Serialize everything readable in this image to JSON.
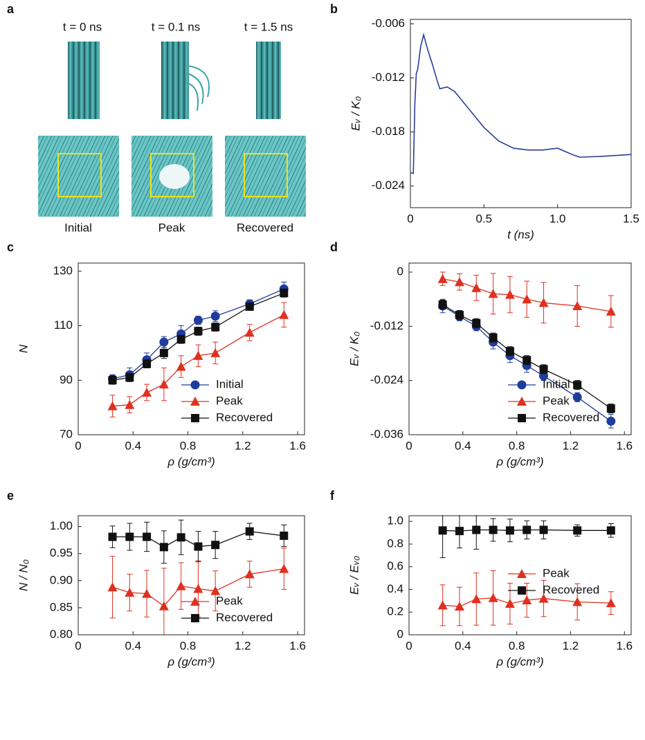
{
  "panel_a": {
    "panel_label": "a",
    "times": [
      "t = 0 ns",
      "t = 0.1 ns",
      "t = 1.5 ns"
    ],
    "states": [
      "Initial",
      "Peak",
      "Recovered"
    ]
  },
  "chart_data": [
    {
      "type": "line",
      "panel_label": "b",
      "x_label": "t  (ns)",
      "y_label": "Eᵥ / K₀",
      "x": [
        0,
        0.02,
        0.03,
        0.04,
        0.05,
        0.07,
        0.09,
        0.12,
        0.15,
        0.18,
        0.2,
        0.25,
        0.3,
        0.4,
        0.5,
        0.6,
        0.7,
        0.8,
        0.9,
        1.0,
        1.1,
        1.15,
        1.3,
        1.4,
        1.5
      ],
      "series": [
        {
          "color": "#2b3b9a",
          "values": [
            -0.0225,
            -0.0226,
            -0.015,
            -0.0115,
            -0.011,
            -0.0085,
            -0.0072,
            -0.009,
            -0.0105,
            -0.0122,
            -0.0132,
            -0.013,
            -0.0135,
            -0.0155,
            -0.0175,
            -0.019,
            -0.0198,
            -0.02,
            -0.02,
            -0.0198,
            -0.0205,
            -0.0208,
            -0.0207,
            -0.0206,
            -0.0205
          ]
        }
      ],
      "xlim": [
        0,
        1.5
      ],
      "xticks": [
        0,
        0.5,
        {
          "value": 1,
          "label": "1.0"
        },
        1.5
      ],
      "ylim": [
        -0.0264,
        -0.0055
      ],
      "yticks": [
        -0.006,
        -0.012,
        -0.018,
        -0.024
      ]
    },
    {
      "type": "line",
      "panel_label": "c",
      "x_label": "ρ (g/cm³)",
      "y_label": "N",
      "legend": "lower right",
      "x": [
        0.25,
        0.375,
        0.5,
        0.625,
        0.75,
        0.875,
        1.0,
        1.25,
        1.5
      ],
      "series": [
        {
          "name": "Initial",
          "color": "#1f3b9c",
          "marker": "circle",
          "values": [
            90.5,
            92,
            97.5,
            104,
            107,
            112,
            113.5,
            118,
            123.5
          ],
          "errors": [
            1.5,
            2.5,
            2.5,
            2,
            3,
            1.5,
            2,
            1.5,
            2.5
          ]
        },
        {
          "name": "Peak",
          "color": "#e03020",
          "marker": "triangle",
          "values": [
            80.5,
            81,
            85.5,
            88.5,
            95,
            99,
            100,
            107.5,
            114
          ],
          "errors": [
            4,
            3,
            3,
            6,
            4,
            4,
            4,
            3,
            4.5
          ]
        },
        {
          "name": "Recovered",
          "color": "#111111",
          "marker": "square",
          "values": [
            90,
            91,
            96,
            100,
            105,
            108,
            109.5,
            117,
            122
          ],
          "errors": [
            1.5,
            1.5,
            1.5,
            2,
            1.5,
            1.5,
            1.5,
            1,
            1.5
          ]
        }
      ],
      "xlim": [
        0,
        1.65
      ],
      "xticks": [
        0,
        0.4,
        0.8,
        1.2,
        1.6
      ],
      "ylim": [
        70,
        133
      ],
      "yticks": [
        70,
        90,
        110,
        130
      ]
    },
    {
      "type": "line",
      "panel_label": "d",
      "x_label": "ρ (g/cm³)",
      "y_label": "Eᵥ / K₀",
      "legend": "lower right",
      "x": [
        0.25,
        0.375,
        0.5,
        0.625,
        0.75,
        0.875,
        1.0,
        1.25,
        1.5
      ],
      "series": [
        {
          "name": "Initial",
          "color": "#1f3b9c",
          "marker": "circle",
          "values": [
            -0.0075,
            -0.0098,
            -0.012,
            -0.0155,
            -0.0185,
            -0.0207,
            -0.023,
            -0.0277,
            -0.033
          ],
          "errors": [
            0.0015,
            0.001,
            0.001,
            0.0015,
            0.0015,
            0.0015,
            0.001,
            0.001,
            0.0015
          ]
        },
        {
          "name": "Peak",
          "color": "#e03020",
          "marker": "triangle",
          "values": [
            -0.0015,
            -0.0022,
            -0.0035,
            -0.0048,
            -0.005,
            -0.006,
            -0.0068,
            -0.0075,
            -0.0087
          ],
          "errors": [
            0.0015,
            0.0018,
            0.0028,
            0.0045,
            0.004,
            0.004,
            0.0045,
            0.0045,
            0.0035
          ]
        },
        {
          "name": "Recovered",
          "color": "#111111",
          "marker": "square",
          "values": [
            -0.0072,
            -0.0095,
            -0.0113,
            -0.0145,
            -0.0175,
            -0.0195,
            -0.0215,
            -0.025,
            -0.0302
          ],
          "errors": [
            0.001,
            0.001,
            0.001,
            0.001,
            0.001,
            0.001,
            0.001,
            0.001,
            0.001
          ]
        }
      ],
      "xlim": [
        0,
        1.65
      ],
      "xticks": [
        0,
        0.4,
        0.8,
        1.2,
        1.6
      ],
      "ylim": [
        -0.036,
        0.002
      ],
      "yticks": [
        0,
        -0.012,
        -0.024,
        -0.036
      ]
    },
    {
      "type": "line",
      "panel_label": "e",
      "x_label": "ρ (g/cm³)",
      "y_label": "N / N₀",
      "legend": "lower right",
      "x": [
        0.25,
        0.375,
        0.5,
        0.625,
        0.75,
        0.875,
        1.0,
        1.25,
        1.5
      ],
      "series": [
        {
          "name": "Peak",
          "color": "#e03020",
          "marker": "triangle",
          "values": [
            0.888,
            0.878,
            0.876,
            0.853,
            0.89,
            0.885,
            0.881,
            0.912,
            0.922
          ],
          "errors": [
            0.057,
            0.034,
            0.043,
            0.07,
            0.043,
            0.052,
            0.037,
            0.024,
            0.038
          ]
        },
        {
          "name": "Recovered",
          "color": "#111111",
          "marker": "square",
          "values": [
            0.981,
            0.981,
            0.981,
            0.962,
            0.98,
            0.963,
            0.966,
            0.991,
            0.983
          ],
          "errors": [
            0.02,
            0.025,
            0.027,
            0.03,
            0.032,
            0.028,
            0.025,
            0.015,
            0.02
          ]
        }
      ],
      "xlim": [
        0,
        1.65
      ],
      "xticks": [
        0,
        0.4,
        0.8,
        1.2,
        1.6
      ],
      "ylim": [
        0.8,
        1.02
      ],
      "yticks": [
        {
          "value": 0.8,
          "label": "0.80"
        },
        {
          "value": 0.85,
          "label": "0.85"
        },
        {
          "value": 0.9,
          "label": "0.90"
        },
        {
          "value": 0.95,
          "label": "0.95"
        },
        {
          "value": 1,
          "label": "1.00"
        }
      ]
    },
    {
      "type": "line",
      "panel_label": "f",
      "x_label": "ρ (g/cm³)",
      "y_label": "Eᵥ / Eᵥ₀",
      "legend": "center right",
      "x": [
        0.25,
        0.375,
        0.5,
        0.625,
        0.75,
        0.875,
        1.0,
        1.25,
        1.5
      ],
      "series": [
        {
          "name": "Peak",
          "color": "#e03020",
          "marker": "triangle",
          "values": [
            0.26,
            0.25,
            0.315,
            0.325,
            0.275,
            0.305,
            0.32,
            0.29,
            0.28
          ],
          "errors": [
            0.18,
            0.17,
            0.23,
            0.24,
            0.18,
            0.15,
            0.16,
            0.16,
            0.1
          ]
        },
        {
          "name": "Recovered",
          "color": "#111111",
          "marker": "square",
          "values": [
            0.92,
            0.915,
            0.925,
            0.925,
            0.92,
            0.925,
            0.925,
            0.92,
            0.92
          ],
          "errors": [
            0.24,
            0.15,
            0.17,
            0.1,
            0.1,
            0.08,
            0.08,
            0.05,
            0.06
          ]
        }
      ],
      "xlim": [
        0,
        1.65
      ],
      "xticks": [
        0,
        0.4,
        0.8,
        1.2,
        1.6
      ],
      "ylim": [
        0,
        1.05
      ],
      "yticks": [
        0,
        0.2,
        0.4,
        0.6,
        0.8,
        {
          "value": 1,
          "label": "1.0"
        }
      ]
    }
  ]
}
